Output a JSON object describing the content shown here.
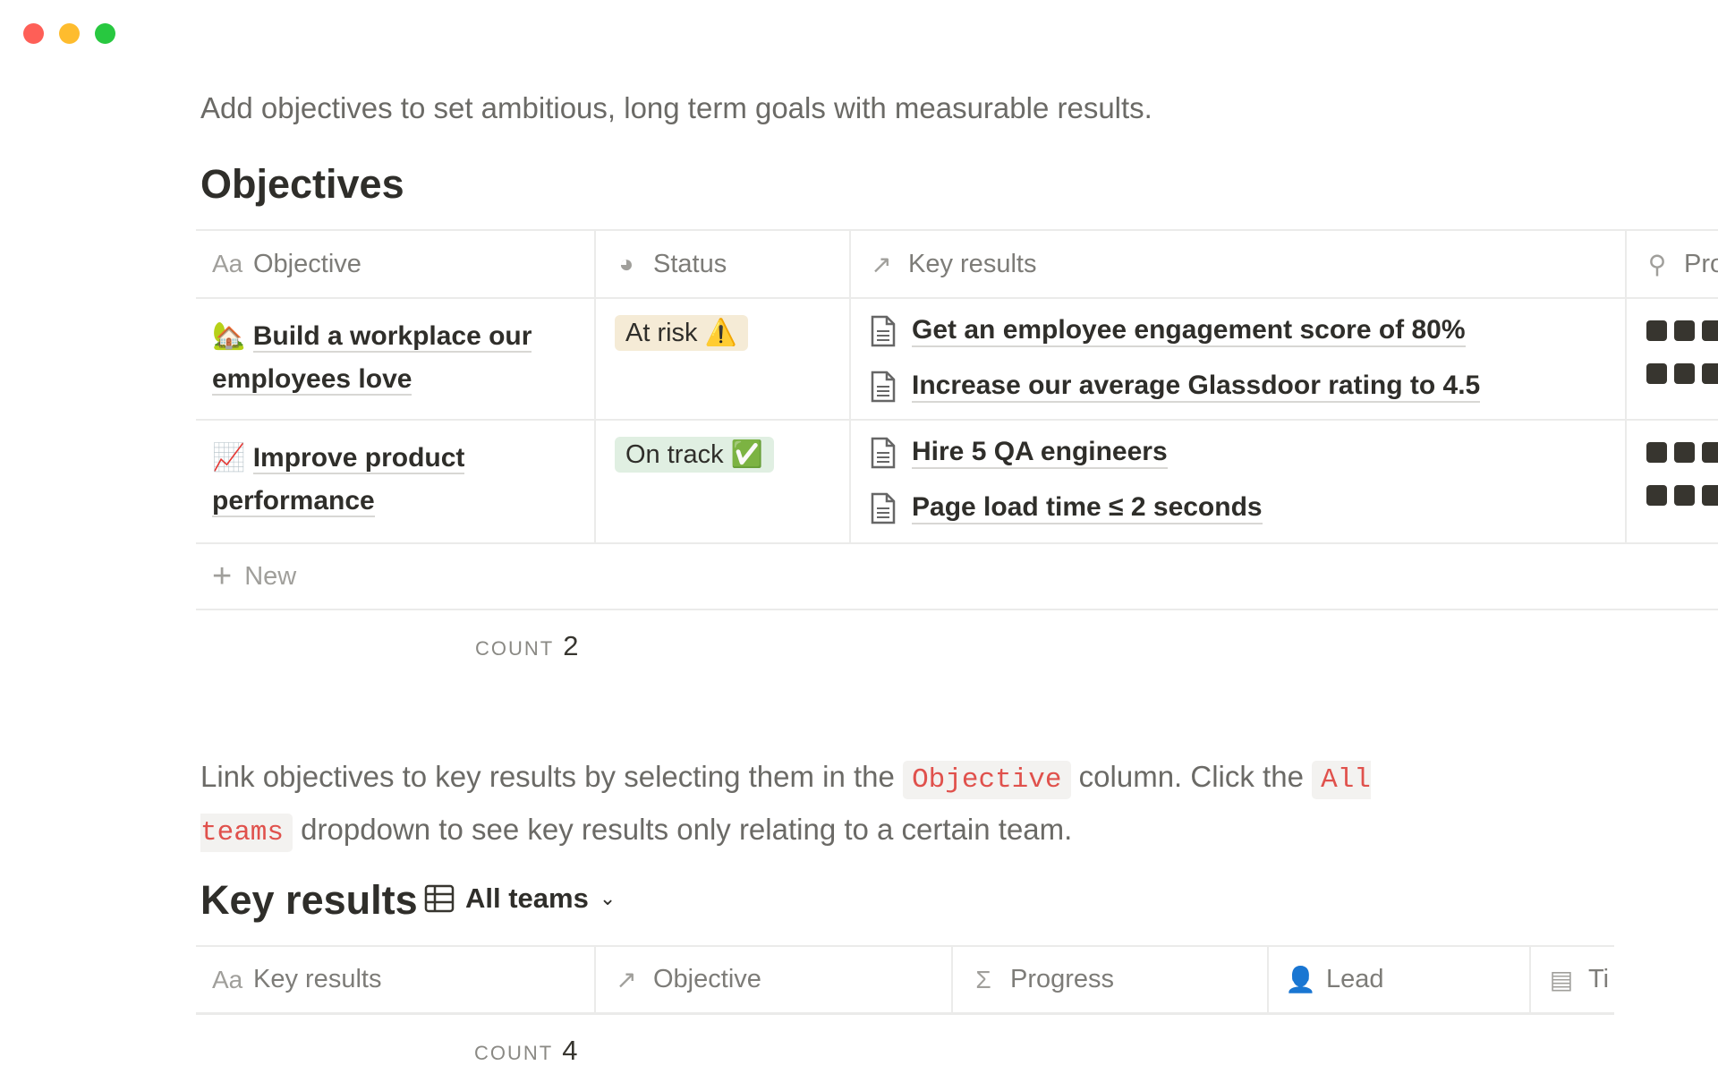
{
  "window": {
    "controls": [
      {
        "name": "close",
        "color": "#fe5f57"
      },
      {
        "name": "minimize",
        "color": "#febc2e"
      },
      {
        "name": "maximize",
        "color": "#28c840"
      }
    ]
  },
  "subtitle": "Add objectives to set ambitious, long term goals with measurable results.",
  "objectives": {
    "heading": "Objectives",
    "columns": [
      {
        "label": "Objective",
        "icon": "text-icon"
      },
      {
        "label": "Status",
        "icon": "status-icon"
      },
      {
        "label": "Key results",
        "icon": "relation-arrow-icon"
      },
      {
        "label": "Pro",
        "icon": "search-icon"
      }
    ],
    "rows": [
      {
        "emoji": "🏡",
        "title": "Build a workplace our employees love",
        "status": "At risk ⚠️",
        "status_color": "#f5ebd6",
        "key_results": [
          "Get an employee engagement score of 80%",
          "Increase our average Glassdoor rating to 4.5"
        ]
      },
      {
        "emoji": "📈",
        "title": "Improve product performance",
        "status": "On track ✅",
        "status_color": "#e0efe2",
        "key_results": [
          "Hire 5 QA engineers",
          "Page load time ≤ 2 seconds"
        ]
      }
    ],
    "new_label": "New",
    "count_label": "COUNT",
    "count": "2"
  },
  "instructions": {
    "p1": "Link objectives to key results by selecting them in the ",
    "code1": "Objective",
    "p2": " column. Click the ",
    "code2": "All teams",
    "p3": " dropdown to see key results only relating to a certain team."
  },
  "key_results": {
    "heading": "Key results",
    "view_label": "All teams",
    "columns": [
      {
        "label": "Key results",
        "icon": "text-icon"
      },
      {
        "label": "Objective",
        "icon": "relation-arrow-icon"
      },
      {
        "label": "Progress",
        "icon": "sigma-icon"
      },
      {
        "label": "Lead",
        "icon": "person-icon"
      },
      {
        "label": "Ti",
        "icon": "calendar-icon"
      }
    ],
    "count_label": "COUNT",
    "count": "4"
  }
}
